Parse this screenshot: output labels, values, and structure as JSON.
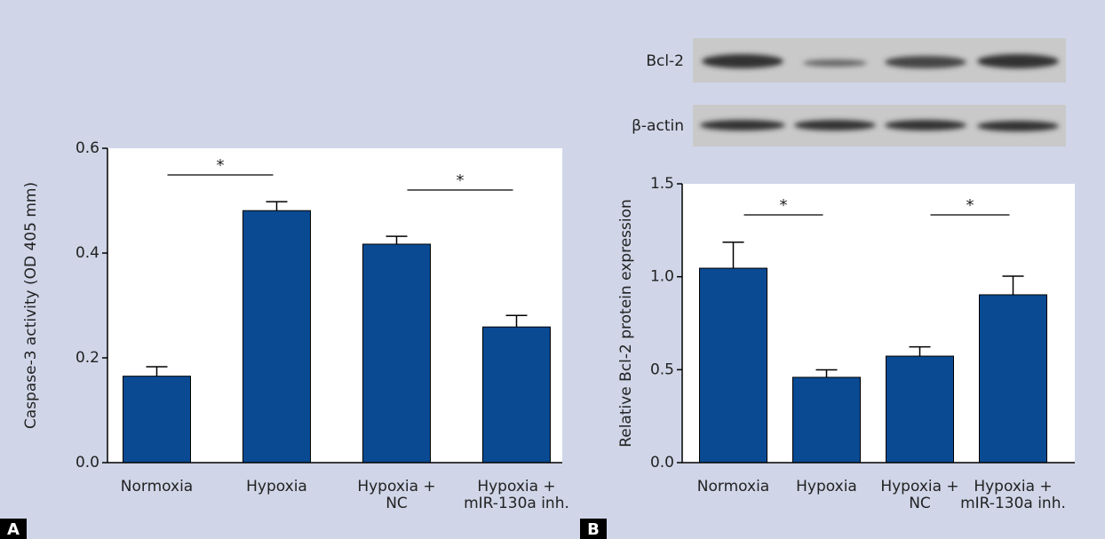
{
  "chart_data": [
    {
      "type": "bar",
      "panel_label": "A",
      "ylabel": "Caspase-3 activity (OD 405 mm)",
      "categories": [
        "Normoxia",
        "Hypoxia",
        "Hypoxia +\nNC",
        "Hypoxia +\nmIR-130a inh."
      ],
      "values": [
        0.165,
        0.481,
        0.417,
        0.259
      ],
      "errors": [
        0.018,
        0.017,
        0.015,
        0.022
      ],
      "color": "#0a4a93",
      "ylim": [
        0,
        0.6
      ],
      "yticks": [
        {
          "value": 0,
          "label": "0.0"
        },
        0.2,
        0.4,
        0.6
      ],
      "significance": [
        {
          "label": "*",
          "between": [
            0,
            1
          ]
        },
        {
          "label": "*",
          "between": [
            2,
            3
          ]
        }
      ]
    },
    {
      "type": "bar",
      "panel_label": "B",
      "ylabel": "Relative Bcl-2 protein expression",
      "categories": [
        "Normoxia",
        "Hypoxia",
        "Hypoxia +\nNC",
        "Hypoxia +\nmIR-130a inh."
      ],
      "values": [
        1.046,
        0.459,
        0.573,
        0.903
      ],
      "errors": [
        0.14,
        0.04,
        0.05,
        0.1
      ],
      "color": "#0a4a93",
      "ylim": [
        0,
        1.5
      ],
      "yticks": [
        {
          "value": 0,
          "label": "0.0"
        },
        0.5,
        {
          "value": 1,
          "label": "1.0"
        },
        1.5
      ],
      "significance": [
        {
          "label": "*",
          "between": [
            0,
            1
          ]
        },
        {
          "label": "*",
          "between": [
            2,
            3
          ]
        }
      ]
    }
  ],
  "blot": {
    "rows": [
      "Bcl-2",
      "β-actin"
    ]
  }
}
